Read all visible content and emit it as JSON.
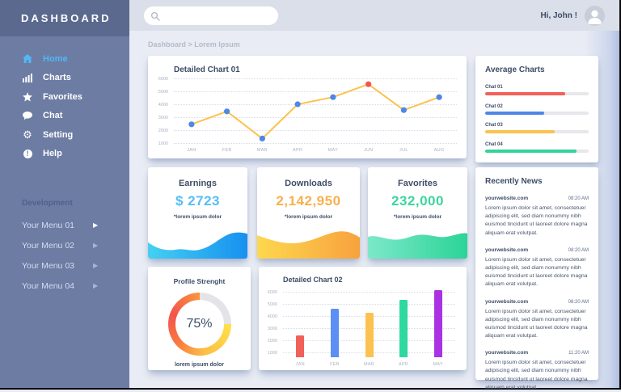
{
  "sidebar": {
    "title": "DASHBOARD",
    "items": [
      {
        "label": "Home",
        "icon": "home-icon",
        "active": true
      },
      {
        "label": "Charts",
        "icon": "bar-chart-icon",
        "active": false
      },
      {
        "label": "Favorites",
        "icon": "star-icon",
        "active": false
      },
      {
        "label": "Chat",
        "icon": "chat-bubble-icon",
        "active": false
      },
      {
        "label": "Setting",
        "icon": "gear-icon",
        "active": false
      },
      {
        "label": "Help",
        "icon": "help-icon",
        "active": false
      }
    ],
    "section_title": "Development",
    "dev_items": [
      {
        "label": "Your Menu 01"
      },
      {
        "label": "Your Menu 02"
      },
      {
        "label": "Your Menu 03"
      },
      {
        "label": "Your Menu 04"
      }
    ]
  },
  "topbar": {
    "search_placeholder": "",
    "search_value": "",
    "greeting": "Hi, John !"
  },
  "breadcrumb": "Dashboard > Lorem Ipsum",
  "stat_cards": [
    {
      "title": "Earnings",
      "value": "$ 2723",
      "caption": "*lorem ipsum dolor",
      "accent": "#55bef5"
    },
    {
      "title": "Downloads",
      "value": "2,142,950",
      "caption": "*lorem ipsum dolor",
      "accent": "#f9b04d"
    },
    {
      "title": "Favorites",
      "value": "232,000",
      "caption": "*lorem ipsum dolor",
      "accent": "#3bd69d"
    }
  ],
  "news": {
    "title": "Recently News",
    "items": [
      {
        "source": "yourwebsite.com",
        "time": "08:20 AM",
        "body": "Lorem ipsum dolor sit amet, consectetuer adipiscing elit, sed diam nonummy nibh euismod tincidunt ut laoreet dolore magna aliquam erat volutpat."
      },
      {
        "source": "yourwebsite.com",
        "time": "08:20 AM",
        "body": "Lorem ipsum dolor sit amet, consectetuer adipiscing elit, sed diam nonummy nibh euismod tincidunt ut laoreet dolore magna aliquam erat volutpat."
      },
      {
        "source": "yourwebsite.com",
        "time": "08:20 AM",
        "body": "Lorem ipsum dolor sit amet, consectetuer adipiscing elit, sed diam nonummy nibh euismod tincidunt ut laoreet dolore magna aliquam erat volutpat."
      },
      {
        "source": "yourwebsite.com",
        "time": "11:20 AM",
        "body": "Lorem ipsum dolor sit amet, consectetuer adipiscing elit, sed diam nonummy nibh euismod tincidunt ut laoreet dolore magna aliquam erat volutpat."
      }
    ]
  },
  "chart_data": [
    {
      "id": "detailed-chart-01",
      "type": "line",
      "title": "Detailed Chart 01",
      "x": [
        "JAN",
        "FEB",
        "MAR",
        "APR",
        "MAY",
        "JUN",
        "JUL",
        "AUG"
      ],
      "values": [
        2450,
        3450,
        1350,
        4000,
        4550,
        5550,
        3550,
        4550
      ],
      "y_ticks": [
        6000,
        5000,
        4000,
        3000,
        2000,
        1000
      ],
      "ylim": [
        1000,
        6000
      ],
      "grid": "dotted-horizontal",
      "legend": "none",
      "line_color": "#fcc24f",
      "point_color": "#4d87e8",
      "highlight_index": 5,
      "highlight_color": "#f2564d"
    },
    {
      "id": "average-charts",
      "type": "bar",
      "orientation": "horizontal",
      "title": "Average Charts",
      "categories": [
        "Chat 01",
        "Chat 02",
        "Chat 03",
        "Chat 04"
      ],
      "values": [
        77,
        57,
        67,
        88
      ],
      "unit": "percent",
      "colors": [
        "#f2605a",
        "#4f86ea",
        "#fcc24f",
        "#34d39b"
      ],
      "track_color": "#e7e7ec"
    },
    {
      "id": "profile-strength",
      "type": "pie",
      "title": "Profile Strenght",
      "value": 75,
      "label": "75%",
      "caption": "lorem ipsum dolor",
      "track_color": "#e4e4e8",
      "gradient_stops": [
        [
          90,
          "#ffe04a"
        ],
        [
          170,
          "#fcbf45"
        ],
        [
          230,
          "#f8793f"
        ],
        [
          290,
          "#f4534d"
        ],
        [
          360,
          "#f9963e"
        ]
      ]
    },
    {
      "id": "detailed-chart-02",
      "type": "bar",
      "orientation": "vertical",
      "title": "Detailed Chart 02",
      "categories": [
        "JAN",
        "FEB",
        "MAR",
        "APR",
        "MAY"
      ],
      "values": [
        2400,
        4600,
        4300,
        5350,
        6150
      ],
      "y_ticks": [
        6000,
        5000,
        4000,
        3000,
        2000,
        1000
      ],
      "baseline_value": 600,
      "top_value": 6300,
      "grid": "dotted-horizontal",
      "colors": [
        "#f2605a",
        "#5b8ff5",
        "#fcc24f",
        "#2ed9a0",
        "#ab32e2"
      ]
    }
  ]
}
